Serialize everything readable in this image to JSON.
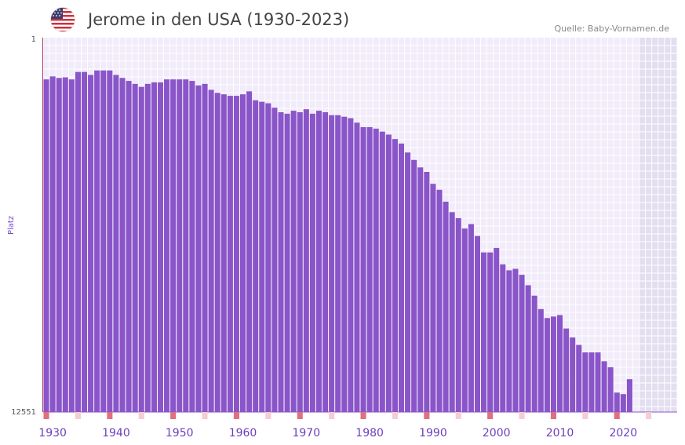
{
  "header": {
    "title": "Jerome in den USA (1930-2023)",
    "source": "Quelle: Baby-Vornamen.de",
    "flag_icon": "us-flag-icon"
  },
  "colors": {
    "bar": "#8a55c9",
    "grid_bg": "#f1ebfa",
    "grid_line": "#ffffff",
    "future_bg": "#e3dff0",
    "decade_marker": "#e07080",
    "year_marker": "#f5cdd3"
  },
  "chart_data": {
    "type": "bar",
    "title": "Jerome in den USA (1930-2023)",
    "xlabel": "",
    "ylabel": "Platz",
    "y_reversed": true,
    "ylim": [
      1,
      12551
    ],
    "ytick_labels": [
      "1",
      "12551"
    ],
    "x_ticks": [
      1930,
      1940,
      1950,
      1960,
      1970,
      1980,
      1990,
      2000,
      2010,
      2020
    ],
    "x_range": [
      1929,
      2029
    ],
    "first_year": 1929,
    "future_start": 2023,
    "values": [
      1400,
      1300,
      1350,
      1330,
      1400,
      1150,
      1150,
      1250,
      1100,
      1100,
      1100,
      1250,
      1350,
      1450,
      1550,
      1650,
      1550,
      1500,
      1500,
      1400,
      1400,
      1400,
      1400,
      1450,
      1600,
      1550,
      1750,
      1850,
      1900,
      1950,
      1950,
      1900,
      1800,
      2100,
      2150,
      2200,
      2350,
      2500,
      2550,
      2450,
      2500,
      2400,
      2550,
      2450,
      2500,
      2600,
      2600,
      2650,
      2700,
      2850,
      3000,
      3000,
      3050,
      3150,
      3250,
      3400,
      3550,
      3850,
      4100,
      4350,
      4500,
      4900,
      5100,
      5500,
      5850,
      6050,
      6400,
      6250,
      6650,
      7200,
      7200,
      7050,
      7600,
      7800,
      7750,
      7950,
      8300,
      8650,
      9100,
      9400,
      9350,
      9300,
      9750,
      10050,
      10300,
      10550,
      10550,
      10550,
      10850,
      11050,
      11900,
      11950,
      11450
    ]
  }
}
